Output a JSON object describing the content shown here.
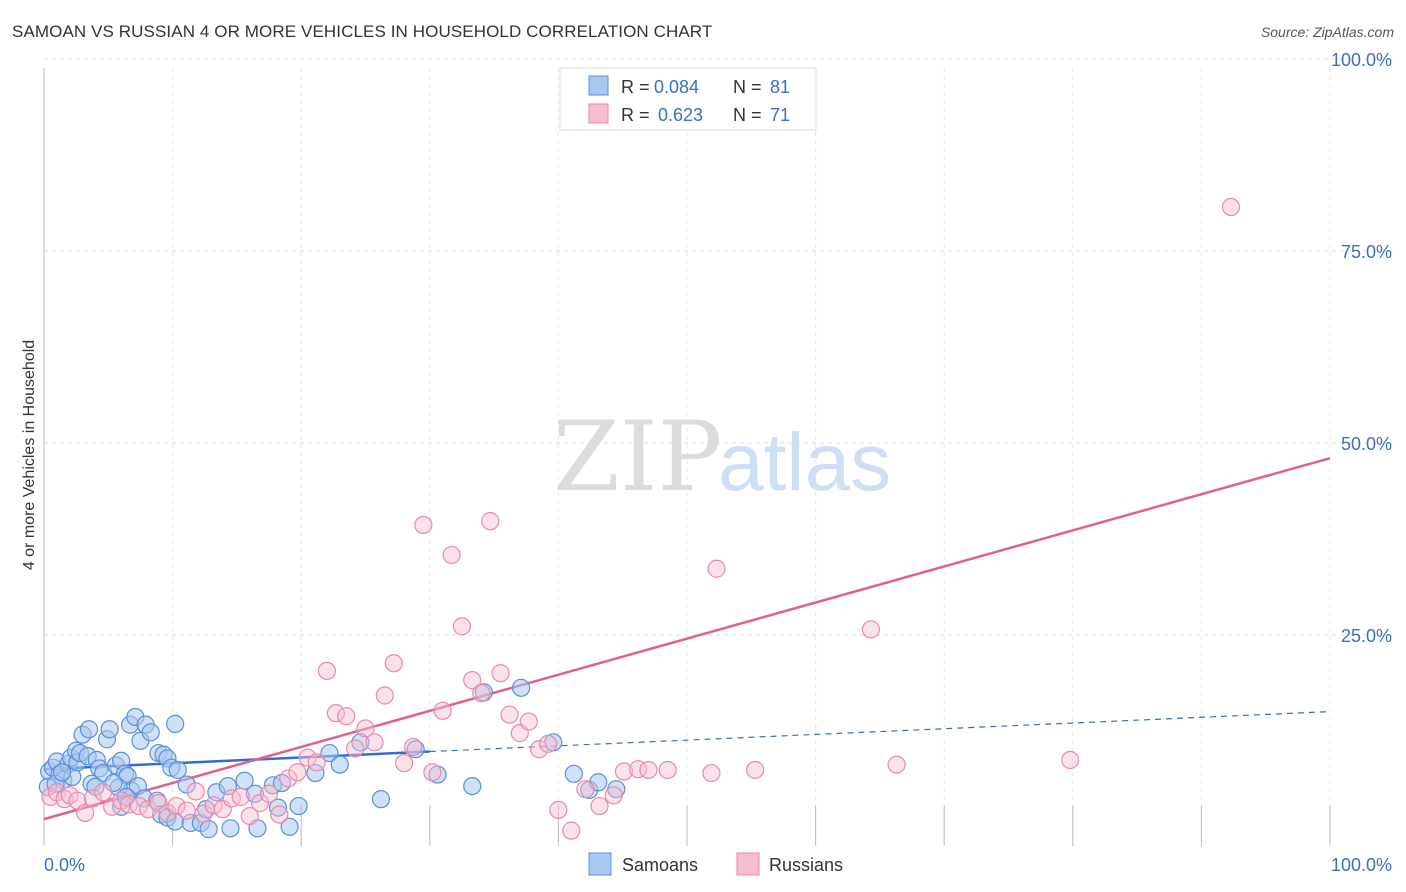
{
  "chart_data": {
    "type": "scatter",
    "title": "SAMOAN VS RUSSIAN 4 OR MORE VEHICLES IN HOUSEHOLD CORRELATION CHART",
    "source": "Source: ZipAtlas.com",
    "xlabel": "",
    "ylabel": "4 or more Vehicles in Household",
    "xlim": [
      0,
      100
    ],
    "ylim": [
      0,
      100
    ],
    "x_tick_labels": [
      "0.0%",
      "100.0%"
    ],
    "y_tick_labels": [
      "100.0%",
      "75.0%",
      "50.0%",
      "25.0%"
    ],
    "y_tick_values": [
      100,
      75,
      50,
      25
    ],
    "watermark": {
      "zip": "ZIP",
      "atlas": "atlas"
    },
    "legend": {
      "entries": [
        {
          "r_label": "R =",
          "r_value": "0.084",
          "n_label": "N =",
          "n_value": "81"
        },
        {
          "r_label": "R =",
          "r_value": "0.623",
          "n_label": "N =",
          "n_value": "71"
        }
      ]
    },
    "bottom_legend": [
      "Samoans",
      "Russians"
    ],
    "colors": {
      "samoans_fill": "#a9c8f0",
      "samoans_stroke": "#5b8fd6",
      "samoans_line": "#2f6fd0",
      "russians_fill": "#f7bdd0",
      "russians_stroke": "#e98aa9",
      "russians_line": "#e0608c",
      "tick_text": "#3a70c4",
      "grid": "#dddddd"
    },
    "series": [
      {
        "name": "Samoans",
        "trend": {
          "x0": 0,
          "y0": 10.0,
          "x1": 30,
          "y1": 12.3,
          "x_ext": 100,
          "y_ext": 17.5
        },
        "points": [
          [
            0.4,
            9.7
          ],
          [
            0.7,
            10.2
          ],
          [
            1.0,
            11.0
          ],
          [
            1.2,
            9.3
          ],
          [
            1.5,
            8.6
          ],
          [
            1.9,
            10.7
          ],
          [
            2.1,
            11.5
          ],
          [
            2.2,
            9.0
          ],
          [
            2.5,
            12.4
          ],
          [
            2.6,
            10.9
          ],
          [
            0.3,
            7.7
          ],
          [
            0.9,
            8.1
          ],
          [
            1.4,
            9.6
          ],
          [
            2.8,
            12.1
          ],
          [
            3.0,
            14.5
          ],
          [
            3.4,
            11.7
          ],
          [
            3.5,
            15.2
          ],
          [
            4.1,
            11.2
          ],
          [
            4.3,
            10.1
          ],
          [
            4.6,
            9.5
          ],
          [
            3.7,
            8.1
          ],
          [
            4.0,
            7.7
          ],
          [
            4.9,
            13.9
          ],
          [
            5.1,
            15.2
          ],
          [
            5.6,
            10.5
          ],
          [
            6.0,
            11.1
          ],
          [
            6.3,
            9.4
          ],
          [
            6.5,
            9.1
          ],
          [
            6.7,
            15.8
          ],
          [
            7.1,
            16.8
          ],
          [
            7.5,
            13.7
          ],
          [
            7.9,
            15.8
          ],
          [
            8.3,
            14.8
          ],
          [
            8.9,
            12.1
          ],
          [
            9.3,
            11.9
          ],
          [
            9.6,
            11.4
          ],
          [
            9.9,
            10.2
          ],
          [
            10.2,
            15.9
          ],
          [
            10.4,
            9.9
          ],
          [
            11.1,
            8.0
          ],
          [
            6.8,
            7.2
          ],
          [
            7.3,
            7.8
          ],
          [
            5.8,
            7.6
          ],
          [
            5.4,
            8.2
          ],
          [
            6.0,
            5.1
          ],
          [
            6.4,
            6.4
          ],
          [
            7.8,
            6.2
          ],
          [
            8.8,
            5.9
          ],
          [
            9.1,
            4.1
          ],
          [
            9.6,
            3.7
          ],
          [
            10.2,
            3.2
          ],
          [
            11.4,
            3.0
          ],
          [
            12.2,
            3.0
          ],
          [
            12.6,
            4.8
          ],
          [
            13.4,
            7.0
          ],
          [
            14.3,
            7.8
          ],
          [
            15.6,
            8.5
          ],
          [
            16.4,
            6.8
          ],
          [
            17.8,
            7.9
          ],
          [
            18.5,
            8.2
          ],
          [
            18.2,
            5.0
          ],
          [
            19.8,
            5.2
          ],
          [
            12.8,
            2.2
          ],
          [
            14.5,
            2.3
          ],
          [
            16.6,
            2.3
          ],
          [
            19.1,
            2.5
          ],
          [
            21.1,
            9.5
          ],
          [
            22.2,
            12.1
          ],
          [
            23.0,
            10.6
          ],
          [
            24.6,
            13.5
          ],
          [
            26.2,
            6.1
          ],
          [
            28.9,
            12.6
          ],
          [
            30.6,
            9.3
          ],
          [
            33.3,
            7.8
          ],
          [
            34.2,
            20.0
          ],
          [
            37.1,
            20.6
          ],
          [
            39.6,
            13.5
          ],
          [
            41.2,
            9.4
          ],
          [
            42.4,
            7.3
          ],
          [
            43.1,
            8.3
          ],
          [
            44.5,
            7.4
          ]
        ]
      },
      {
        "name": "Russians",
        "trend": {
          "x0": 0,
          "y0": 3.5,
          "x1": 100,
          "y1": 50.5
        },
        "points": [
          [
            0.5,
            6.4
          ],
          [
            1.0,
            7.0
          ],
          [
            1.6,
            6.1
          ],
          [
            2.0,
            6.6
          ],
          [
            2.6,
            5.9
          ],
          [
            3.2,
            4.3
          ],
          [
            3.8,
            6.2
          ],
          [
            4.6,
            7.0
          ],
          [
            5.3,
            5.1
          ],
          [
            6.0,
            5.9
          ],
          [
            6.6,
            5.4
          ],
          [
            7.4,
            5.2
          ],
          [
            8.1,
            4.8
          ],
          [
            8.9,
            5.6
          ],
          [
            9.6,
            4.3
          ],
          [
            10.3,
            5.2
          ],
          [
            11.1,
            4.6
          ],
          [
            11.8,
            7.1
          ],
          [
            12.4,
            4.2
          ],
          [
            13.2,
            5.3
          ],
          [
            13.9,
            4.8
          ],
          [
            14.6,
            6.2
          ],
          [
            15.3,
            6.4
          ],
          [
            16.0,
            3.9
          ],
          [
            16.8,
            5.6
          ],
          [
            17.5,
            6.8
          ],
          [
            18.3,
            4.1
          ],
          [
            19.0,
            8.8
          ],
          [
            19.7,
            9.6
          ],
          [
            20.5,
            11.5
          ],
          [
            21.2,
            10.9
          ],
          [
            22.0,
            22.8
          ],
          [
            22.7,
            17.3
          ],
          [
            23.5,
            16.9
          ],
          [
            24.2,
            12.7
          ],
          [
            25.0,
            15.3
          ],
          [
            25.7,
            13.5
          ],
          [
            26.5,
            19.6
          ],
          [
            27.2,
            23.8
          ],
          [
            28.0,
            10.8
          ],
          [
            28.7,
            12.9
          ],
          [
            29.5,
            41.8
          ],
          [
            30.2,
            9.6
          ],
          [
            31.0,
            17.6
          ],
          [
            31.7,
            37.9
          ],
          [
            32.5,
            28.6
          ],
          [
            33.3,
            21.6
          ],
          [
            34.0,
            19.9
          ],
          [
            34.7,
            42.3
          ],
          [
            35.5,
            22.5
          ],
          [
            36.2,
            17.1
          ],
          [
            37.0,
            14.7
          ],
          [
            37.7,
            16.2
          ],
          [
            38.5,
            12.6
          ],
          [
            39.2,
            13.3
          ],
          [
            40.0,
            4.7
          ],
          [
            41.0,
            2.0
          ],
          [
            42.1,
            7.4
          ],
          [
            43.2,
            5.2
          ],
          [
            44.3,
            6.6
          ],
          [
            45.1,
            9.7
          ],
          [
            46.2,
            10.0
          ],
          [
            47.0,
            9.9
          ],
          [
            48.5,
            9.9
          ],
          [
            51.9,
            9.5
          ],
          [
            55.3,
            9.9
          ],
          [
            52.3,
            36.1
          ],
          [
            64.3,
            28.2
          ],
          [
            66.3,
            10.6
          ],
          [
            79.8,
            11.2
          ],
          [
            92.3,
            83.2
          ]
        ]
      }
    ]
  }
}
